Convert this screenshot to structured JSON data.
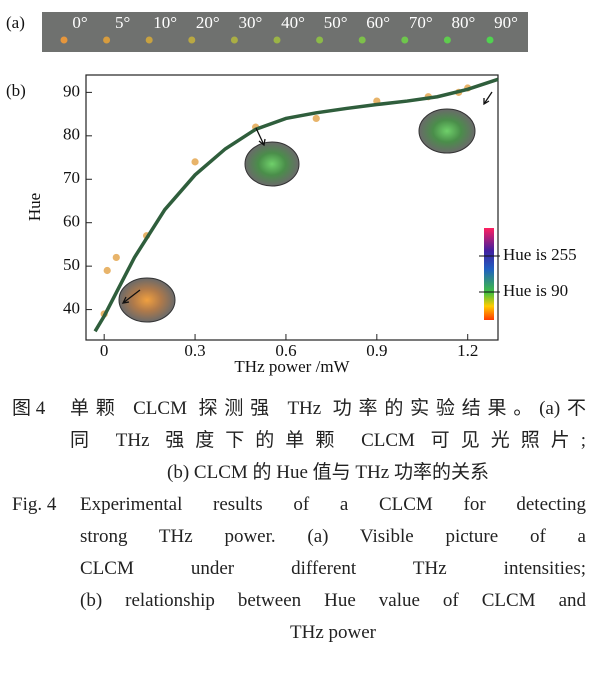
{
  "panel_a": {
    "label": "(a)",
    "angles": [
      "0°",
      "5°",
      "10°",
      "20°",
      "30°",
      "40°",
      "50°",
      "60°",
      "70°",
      "80°",
      "90°"
    ]
  },
  "chart_data": {
    "type": "scatter",
    "panel_label": "(b)",
    "x_label": "THz power /mW",
    "y_label": "Hue",
    "xlim": [
      -0.06,
      1.3
    ],
    "ylim": [
      33,
      94
    ],
    "xticks": [
      0,
      0.3,
      0.6,
      0.9,
      1.2
    ],
    "yticks": [
      40,
      50,
      60,
      70,
      80,
      90
    ],
    "series": [
      {
        "type": "scatter",
        "color": "#e8b46a",
        "x": [
          0,
          0.01,
          0.04,
          0.14,
          0.3,
          0.5,
          0.7,
          0.9,
          1.07,
          1.17,
          1.2
        ],
        "values": [
          39,
          49,
          52,
          57,
          74,
          82,
          84,
          88,
          89,
          90,
          91
        ]
      },
      {
        "type": "line",
        "color": "#2f5e3c",
        "x": [
          -0.03,
          0,
          0.1,
          0.2,
          0.3,
          0.4,
          0.5,
          0.6,
          0.7,
          0.8,
          0.9,
          1.0,
          1.1,
          1.2,
          1.3
        ],
        "values": [
          35,
          38.5,
          52,
          63,
          71,
          77,
          81.5,
          84,
          85.3,
          86.3,
          87.2,
          88,
          89,
          90.7,
          93
        ]
      }
    ],
    "annotations": [
      "Hue is 255",
      "Hue is 90"
    ]
  },
  "caption_cn": {
    "label": "图 4",
    "lines": [
      "单颗 CLCM 探测强 THz 功率的实验结果。(a)不",
      "同 THz 强度下的单颗 CLCM 可见光照片;",
      "(b) CLCM 的 Hue 值与 THz 功率的关系"
    ]
  },
  "caption_en": {
    "label": "Fig. 4",
    "lines": [
      "Experimental results of a CLCM for detecting",
      "strong THz power. (a) Visible picture of a",
      "CLCM under different THz intensities;",
      "(b) relationship between Hue value of CLCM and",
      "THz power"
    ]
  }
}
